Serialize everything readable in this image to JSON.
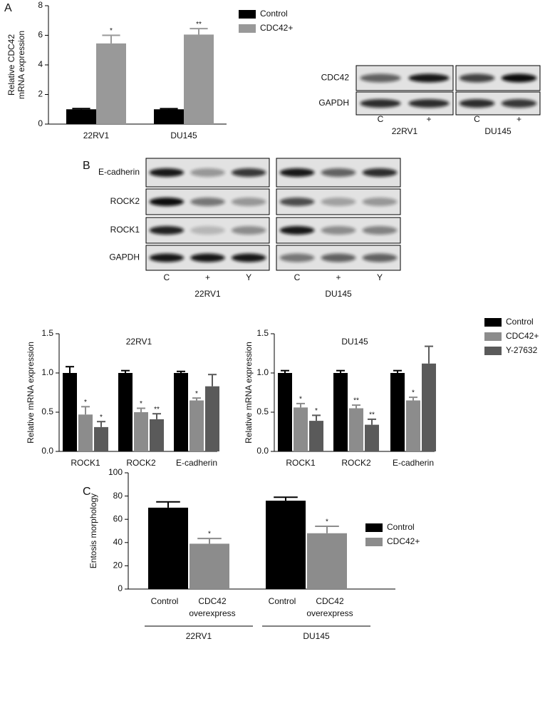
{
  "panel_labels": [
    "A",
    "B",
    "C"
  ],
  "blots": [
    {
      "rows": [
        "CDC42",
        "GAPDH"
      ],
      "lanes": [
        "C",
        "+"
      ],
      "cell_lines": [
        "22RV1",
        "DU145"
      ]
    },
    {
      "rows": [
        "E-cadherin",
        "ROCK2",
        "ROCK1",
        "GAPDH"
      ],
      "lanes": [
        "C",
        "+",
        "Y"
      ],
      "cell_lines": [
        "22RV1",
        "DU145"
      ]
    }
  ],
  "chart_data": [
    {
      "type": "bar",
      "ylabel": [
        "Relative CDC42",
        "mRNA expression"
      ],
      "categories": [
        "22RV1",
        "DU145"
      ],
      "series": [
        {
          "name": "Control",
          "color": "#000000",
          "values": [
            1.0,
            1.0
          ],
          "errors": [
            0.05,
            0.04
          ],
          "significance": [
            null,
            null
          ]
        },
        {
          "name": "CDC42+",
          "color": "#999999",
          "values": [
            5.45,
            6.05
          ],
          "errors": [
            0.55,
            0.4
          ],
          "significance": [
            "*",
            "**"
          ]
        }
      ],
      "ylim": [
        0,
        8
      ],
      "yticks": [
        0,
        2,
        4,
        6,
        8
      ],
      "legend": true
    },
    {
      "type": "bar",
      "title": "22RV1",
      "ylabel": [
        "Relative mRNA expression"
      ],
      "categories": [
        "ROCK1",
        "ROCK2",
        "E-cadherin"
      ],
      "series": [
        {
          "name": "Control",
          "color": "#000000",
          "values": [
            1.0,
            1.0,
            1.0
          ],
          "errors": [
            0.08,
            0.03,
            0.02
          ],
          "significance": [
            null,
            null,
            null
          ]
        },
        {
          "name": "CDC42+",
          "color": "#8c8c8c",
          "values": [
            0.47,
            0.5,
            0.65
          ],
          "errors": [
            0.1,
            0.05,
            0.03
          ],
          "significance": [
            "*",
            "*",
            "*"
          ]
        },
        {
          "name": "Y-27632",
          "color": "#5a5a5a",
          "values": [
            0.31,
            0.41,
            0.83
          ],
          "errors": [
            0.07,
            0.07,
            0.15
          ],
          "significance": [
            "*",
            "**",
            null
          ]
        }
      ],
      "ylim": [
        0,
        1.5
      ],
      "yticks": [
        {
          "value": 0,
          "label": "0.0"
        },
        0.5,
        {
          "value": 1,
          "label": "1.0"
        },
        1.5
      ],
      "legend": false
    },
    {
      "type": "bar",
      "title": "DU145",
      "ylabel": [
        "Relative mRNA expression"
      ],
      "categories": [
        "ROCK1",
        "ROCK2",
        "E-cadherin"
      ],
      "series": [
        {
          "name": "Control",
          "color": "#000000",
          "values": [
            1.0,
            1.0,
            1.0
          ],
          "errors": [
            0.03,
            0.03,
            0.03
          ],
          "significance": [
            null,
            null,
            null
          ]
        },
        {
          "name": "CDC42+",
          "color": "#8c8c8c",
          "values": [
            0.56,
            0.55,
            0.65
          ],
          "errors": [
            0.05,
            0.04,
            0.04
          ],
          "significance": [
            "*",
            "**",
            "*"
          ]
        },
        {
          "name": "Y-27632",
          "color": "#5a5a5a",
          "values": [
            0.39,
            0.34,
            1.12
          ],
          "errors": [
            0.07,
            0.07,
            0.22
          ],
          "significance": [
            "*",
            "**",
            null
          ]
        }
      ],
      "ylim": [
        0,
        1.5
      ],
      "yticks": [
        {
          "value": 0,
          "label": "0.0"
        },
        0.5,
        {
          "value": 1,
          "label": "1.0"
        },
        1.5
      ],
      "legend": true
    },
    {
      "type": "bar",
      "ylabel": [
        "Entosis morphology"
      ],
      "categories": [
        "22RV1",
        "DU145"
      ],
      "bar_labels": [
        [
          "Control"
        ],
        [
          "CDC42",
          "overexpress"
        ]
      ],
      "series": [
        {
          "name": "Control",
          "color": "#000000",
          "values": [
            70,
            76
          ],
          "errors": [
            5,
            3
          ],
          "significance": [
            null,
            null
          ]
        },
        {
          "name": "CDC42+",
          "color": "#8c8c8c",
          "values": [
            39,
            48
          ],
          "errors": [
            4.5,
            6
          ],
          "significance": [
            "*",
            "*"
          ]
        }
      ],
      "ylim": [
        0,
        100
      ],
      "yticks": [
        0,
        20,
        40,
        60,
        80,
        100
      ],
      "legend": true
    }
  ]
}
